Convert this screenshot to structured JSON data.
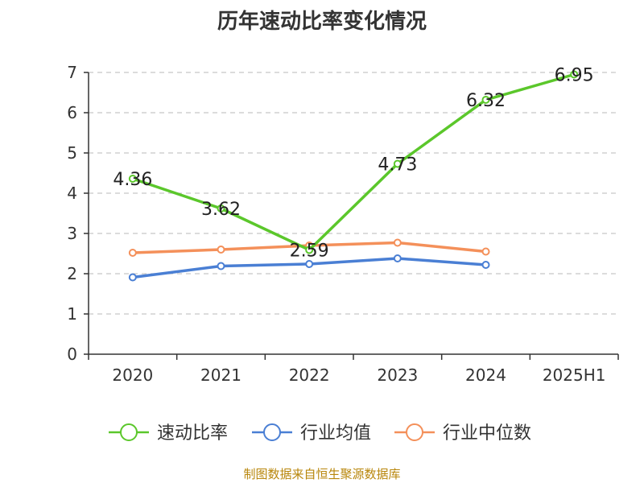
{
  "title": "历年速动比率变化情况",
  "source": "制图数据来自恒生聚源数据库",
  "chart_data": {
    "type": "line",
    "title": "历年速动比率变化情况",
    "categories": [
      "2020",
      "2021",
      "2022",
      "2023",
      "2024",
      "2025H1"
    ],
    "ylim": [
      0,
      7
    ],
    "yticks": [
      0,
      1,
      2,
      3,
      4,
      5,
      6,
      7
    ],
    "grid": true,
    "legend_position": "bottom",
    "series": [
      {
        "name": "速动比率",
        "color": "#5bc72b",
        "values": [
          4.36,
          3.62,
          2.59,
          4.73,
          6.32,
          6.95
        ],
        "labels": [
          "4.36",
          "3.62",
          "2.59",
          "4.73",
          "6.32",
          "6.95"
        ]
      },
      {
        "name": "行业均值",
        "color": "#4a7fd4",
        "values": [
          1.91,
          2.19,
          2.24,
          2.38,
          2.22,
          null
        ]
      },
      {
        "name": "行业中位数",
        "color": "#f4905a",
        "values": [
          2.52,
          2.6,
          2.7,
          2.77,
          2.55,
          null
        ]
      }
    ]
  }
}
